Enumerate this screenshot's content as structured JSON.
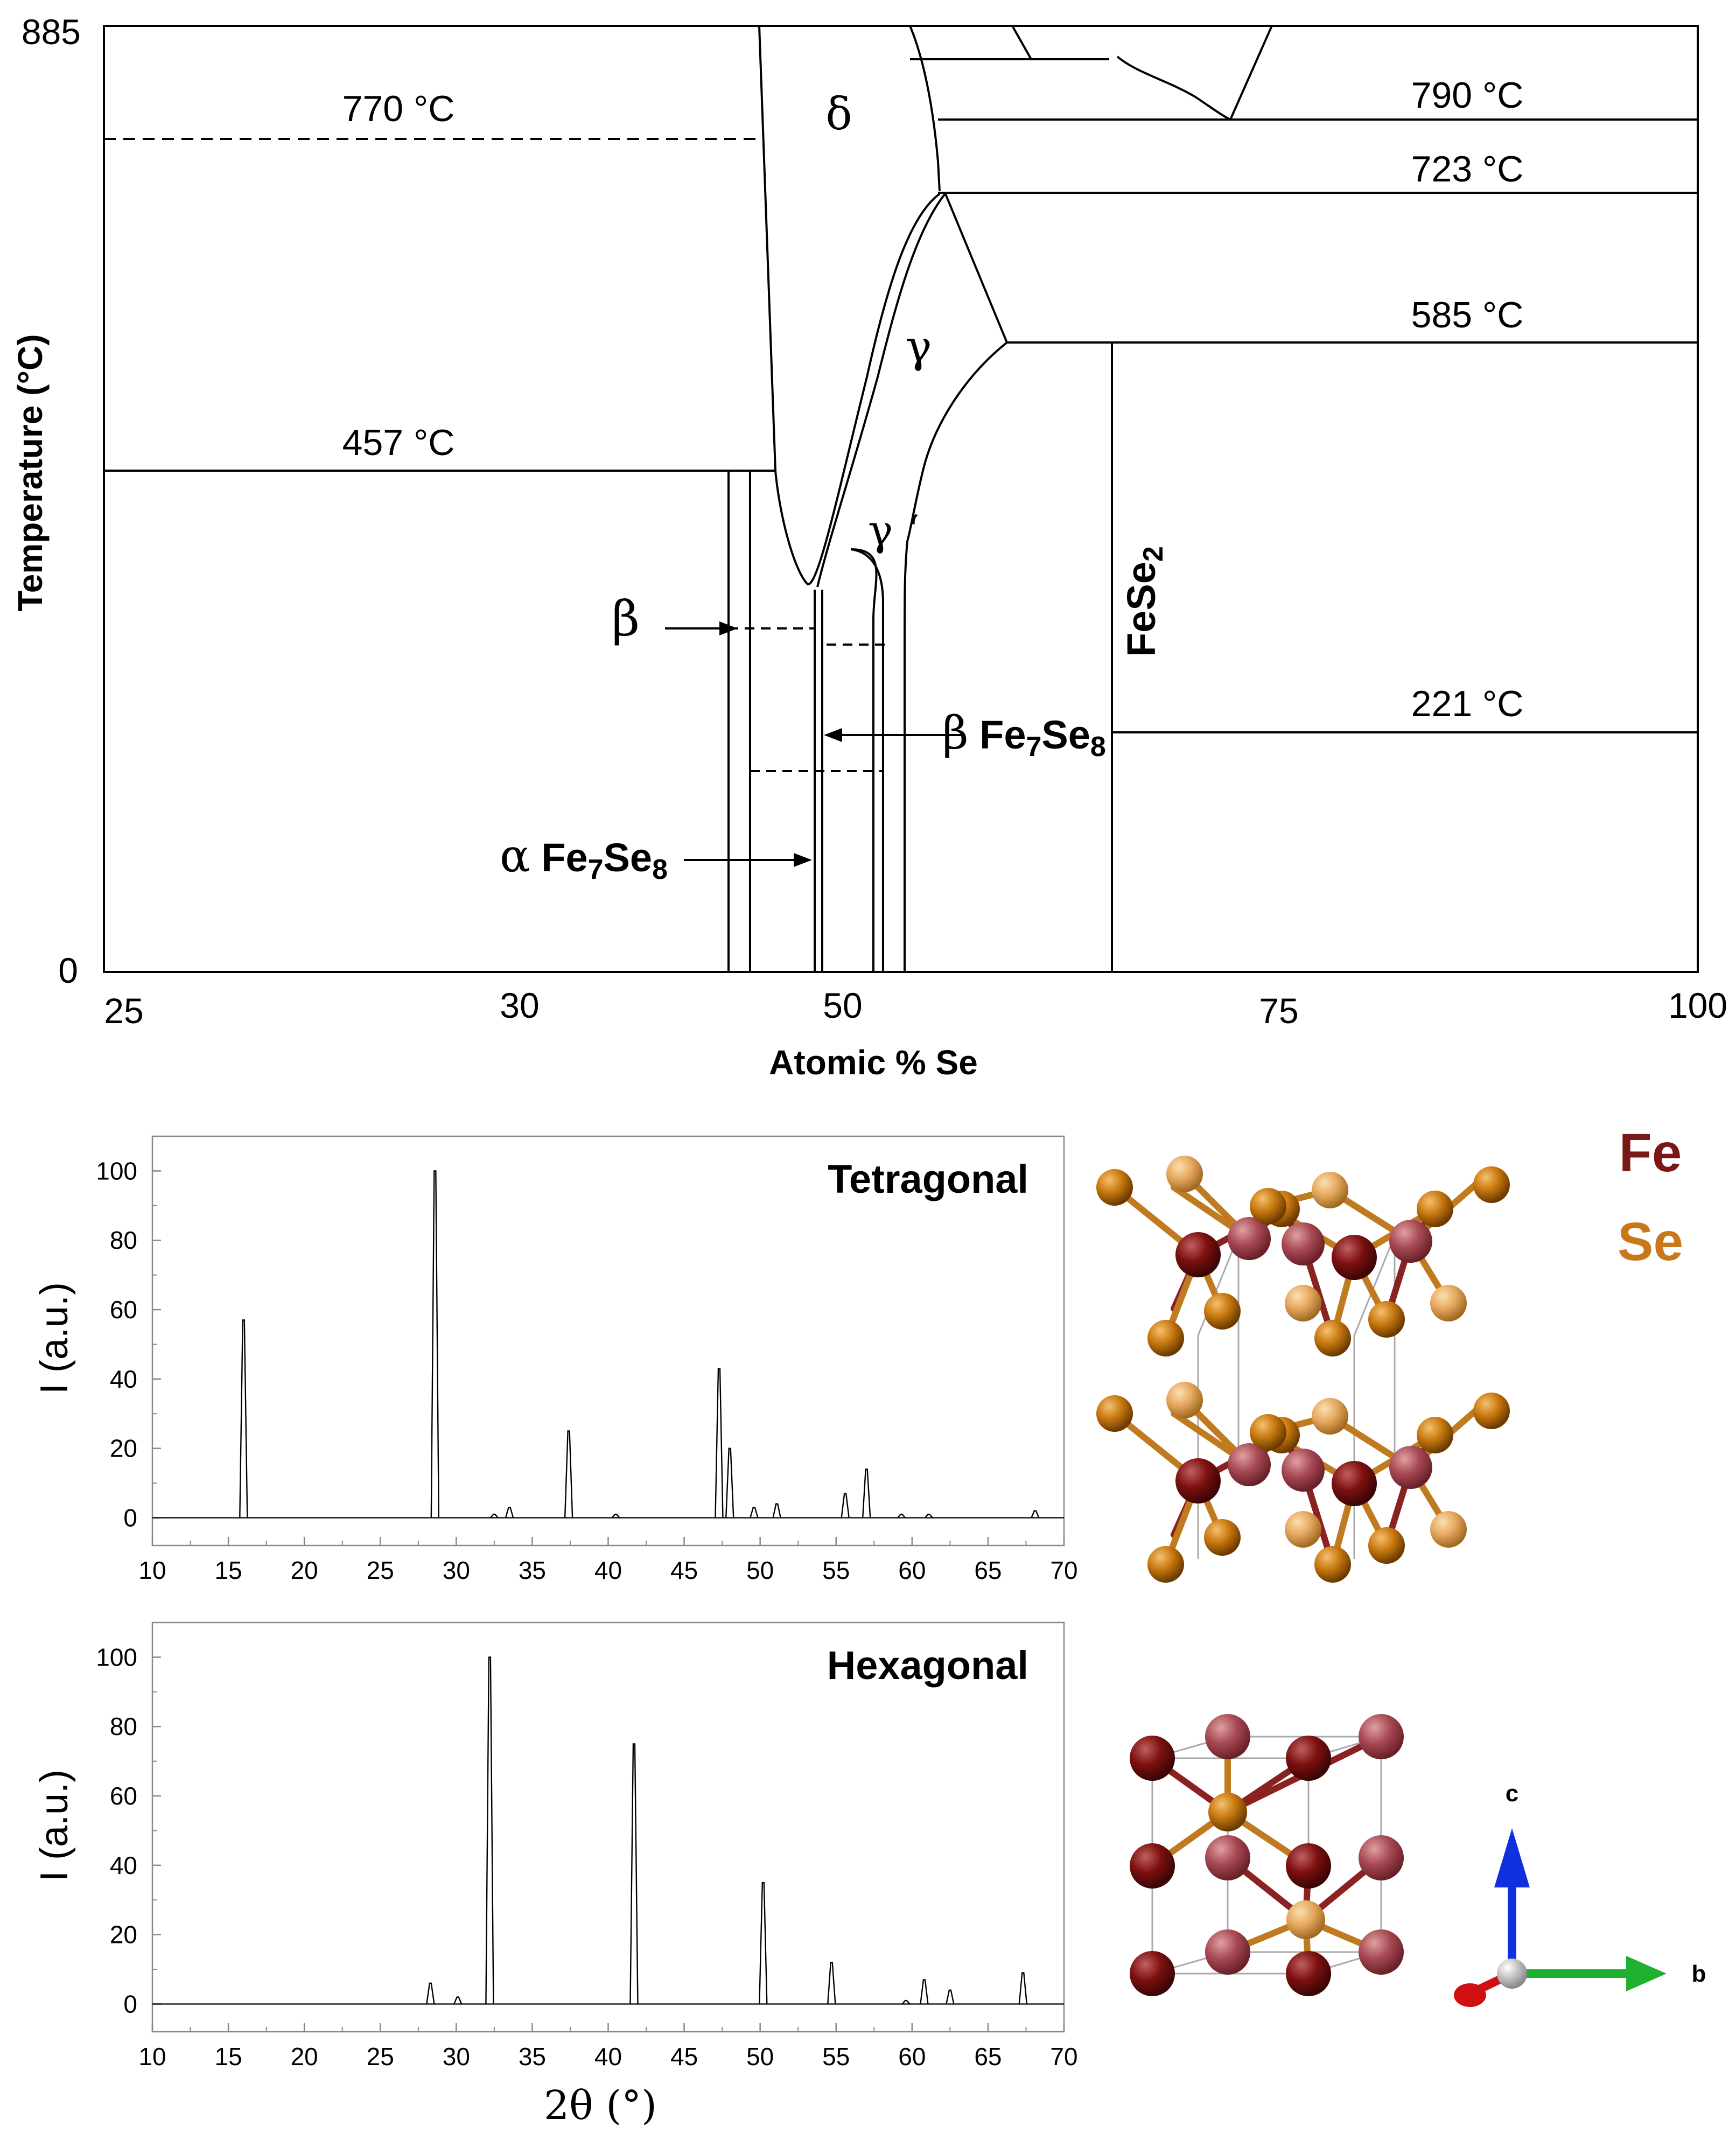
{
  "chart_data": [
    {
      "type": "phase-diagram",
      "xlabel": "Atomic % Se",
      "ylabel": "Temperature (°C)",
      "xlim": [
        25,
        100
      ],
      "ylim": [
        0,
        885
      ],
      "x_ticks": [
        "25",
        "30",
        "50",
        "75",
        "100"
      ],
      "y_ticks": [
        "0",
        "885"
      ],
      "isotherms": [
        {
          "label": "770 °C",
          "value": 770
        },
        {
          "label": "457 °C",
          "value": 457
        },
        {
          "label": "790 °C",
          "value": 790
        },
        {
          "label": "723 °C",
          "value": 723
        },
        {
          "label": "585 °C",
          "value": 585
        },
        {
          "label": "221 °C",
          "value": 221
        }
      ],
      "phase_labels": {
        "delta": "δ",
        "gamma": "γ",
        "gamma_prime": "γ ‘",
        "beta": "β",
        "beta_fe7se8": "β Fe7Se8",
        "alpha_fe7se8": "α Fe7Se8",
        "fese2": "FeSe2"
      }
    },
    {
      "type": "xrd-pattern",
      "title": "Tetragonal",
      "xlabel": "",
      "ylabel": "I (a.u.)",
      "xlim": [
        10,
        70
      ],
      "ylim": [
        -8,
        110
      ],
      "x_ticks": [
        10,
        15,
        20,
        25,
        30,
        35,
        40,
        45,
        50,
        55,
        60,
        65,
        70
      ],
      "y_ticks": [
        0,
        20,
        40,
        60,
        80,
        100
      ],
      "peaks": [
        {
          "x": 16.0,
          "y": 57
        },
        {
          "x": 28.6,
          "y": 100
        },
        {
          "x": 32.5,
          "y": 1
        },
        {
          "x": 33.5,
          "y": 3
        },
        {
          "x": 37.4,
          "y": 25
        },
        {
          "x": 40.5,
          "y": 1
        },
        {
          "x": 47.3,
          "y": 43
        },
        {
          "x": 48.0,
          "y": 20
        },
        {
          "x": 49.6,
          "y": 3
        },
        {
          "x": 51.1,
          "y": 4
        },
        {
          "x": 55.6,
          "y": 7
        },
        {
          "x": 57.0,
          "y": 14
        },
        {
          "x": 59.3,
          "y": 1
        },
        {
          "x": 61.1,
          "y": 1
        },
        {
          "x": 68.1,
          "y": 2
        }
      ]
    },
    {
      "type": "xrd-pattern",
      "title": "Hexagonal",
      "xlabel": "2θ (°)",
      "ylabel": "I (a.u.)",
      "xlim": [
        10,
        70
      ],
      "ylim": [
        -8,
        110
      ],
      "x_ticks": [
        10,
        15,
        20,
        25,
        30,
        35,
        40,
        45,
        50,
        55,
        60,
        65,
        70
      ],
      "y_ticks": [
        0,
        20,
        40,
        60,
        80,
        100
      ],
      "peaks": [
        {
          "x": 28.3,
          "y": 6
        },
        {
          "x": 30.1,
          "y": 2
        },
        {
          "x": 32.2,
          "y": 100
        },
        {
          "x": 41.7,
          "y": 75
        },
        {
          "x": 50.2,
          "y": 35
        },
        {
          "x": 54.7,
          "y": 12
        },
        {
          "x": 59.6,
          "y": 1
        },
        {
          "x": 60.8,
          "y": 7
        },
        {
          "x": 62.5,
          "y": 4
        },
        {
          "x": 67.3,
          "y": 9
        }
      ]
    }
  ],
  "legend": {
    "fe": {
      "label": "Fe",
      "color": "#7a1717"
    },
    "se": {
      "label": "Se",
      "color": "#c8781a"
    }
  },
  "axes_triad": {
    "c": "c",
    "b": "b"
  }
}
